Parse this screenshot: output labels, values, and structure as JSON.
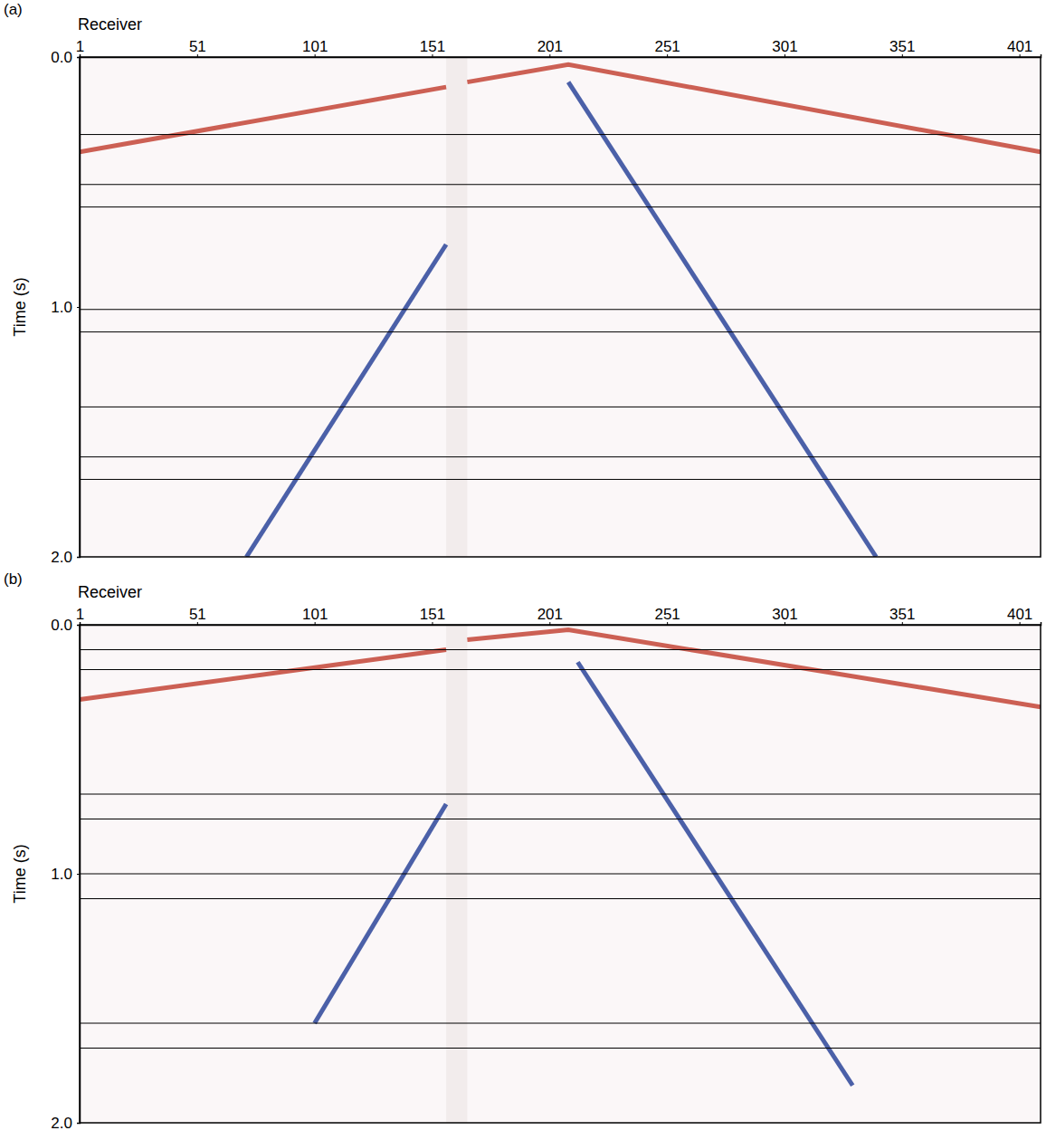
{
  "chart_data": [
    {
      "type": "line",
      "panel": "(a)",
      "x_label": "Receiver",
      "y_label": "Time (s)",
      "xlim": [
        1,
        410
      ],
      "ylim": [
        2,
        0
      ],
      "xticks": [
        1,
        51,
        101,
        151,
        201,
        251,
        301,
        351,
        401
      ],
      "yticks": [
        {
          "value": 0,
          "label": "0.0"
        },
        {
          "value": 1,
          "label": "1.0"
        },
        {
          "value": 2,
          "label": "2.0"
        }
      ],
      "gap": [
        157,
        166
      ],
      "hlines": [
        0.31,
        0.51,
        0.6,
        1.01,
        1.1,
        1.4,
        1.6,
        1.69
      ],
      "series": [
        {
          "color": "#c0392b",
          "x": [
            1,
            157
          ],
          "values": [
            0.38,
            0.12
          ]
        },
        {
          "color": "#c0392b",
          "x": [
            166,
            209,
            410
          ],
          "values": [
            0.1,
            0.03,
            0.38
          ]
        },
        {
          "color": "#1f3a93",
          "x": [
            157,
            72
          ],
          "values": [
            0.75,
            2.0
          ]
        },
        {
          "color": "#1f3a93",
          "x": [
            209,
            340
          ],
          "values": [
            0.1,
            2.0
          ]
        }
      ]
    },
    {
      "type": "line",
      "panel": "(b)",
      "x_label": "Receiver",
      "y_label": "Time (s)",
      "xlim": [
        1,
        410
      ],
      "ylim": [
        2,
        0
      ],
      "xticks": [
        1,
        51,
        101,
        151,
        201,
        251,
        301,
        351,
        401
      ],
      "yticks": [
        {
          "value": 0,
          "label": "0.0"
        },
        {
          "value": 1,
          "label": "1.0"
        },
        {
          "value": 2,
          "label": "2.0"
        }
      ],
      "gap": [
        157,
        166
      ],
      "hlines": [
        0.1,
        0.18,
        0.68,
        0.78,
        1.0,
        1.1,
        1.6,
        1.7
      ],
      "series": [
        {
          "color": "#c0392b",
          "x": [
            1,
            157
          ],
          "values": [
            0.3,
            0.1
          ]
        },
        {
          "color": "#c0392b",
          "x": [
            166,
            209,
            410
          ],
          "values": [
            0.06,
            0.02,
            0.33
          ]
        },
        {
          "color": "#1f3a93",
          "x": [
            157,
            101
          ],
          "values": [
            0.72,
            1.6
          ]
        },
        {
          "color": "#1f3a93",
          "x": [
            213,
            330
          ],
          "values": [
            0.15,
            1.85
          ]
        }
      ]
    }
  ]
}
